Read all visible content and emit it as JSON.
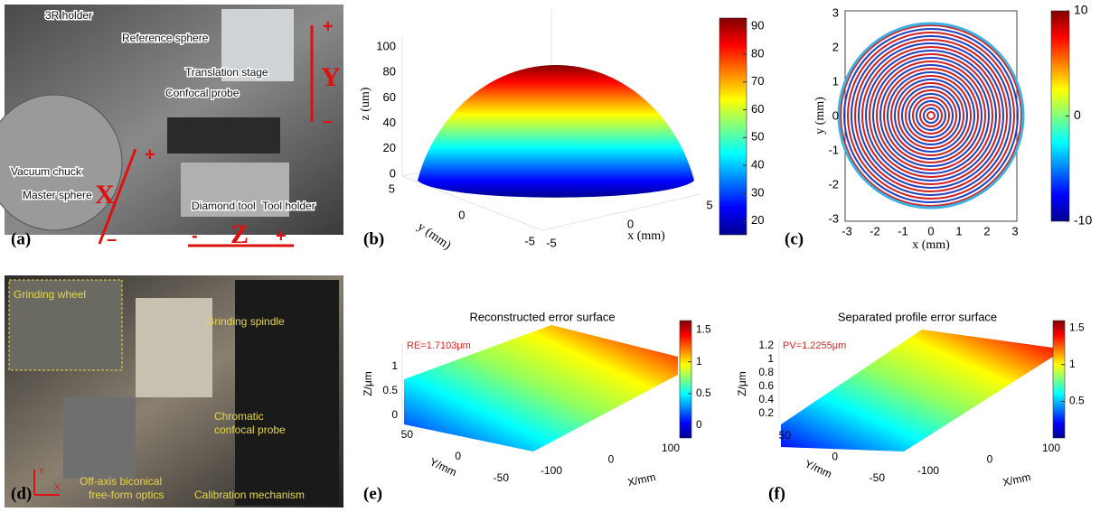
{
  "panel_a": {
    "tag": "(a)",
    "labels": [
      "3R holder",
      "Reference sphere",
      "Translation stage",
      "Confocal probe",
      "Vacuum chuck",
      "Master sphere",
      "Diamond tool",
      "Tool holder"
    ],
    "axes": [
      "Y",
      "X",
      "Z"
    ],
    "signs": [
      "+",
      "–",
      "+",
      "–",
      "-",
      "+"
    ]
  },
  "panel_b": {
    "tag": "(b)",
    "zlabel": "z (um)",
    "ylabel": "y (mm)",
    "xlabel": "x (mm)",
    "zticks": [
      0,
      20,
      40,
      60,
      80,
      100
    ],
    "yticks": [
      5,
      0,
      -5
    ],
    "xticks": [
      -5,
      0,
      5
    ],
    "colorbar": {
      "lim": [
        15,
        93
      ],
      "ticks": [
        20,
        30,
        40,
        50,
        60,
        70,
        80,
        90
      ]
    }
  },
  "panel_c": {
    "tag": "(c)",
    "xlabel": "x (mm)",
    "ylabel": "y (mm)",
    "xticks": [
      -3,
      -2,
      -1,
      0,
      1,
      2,
      3
    ],
    "yticks": [
      3,
      2,
      1,
      0,
      -1,
      -2,
      -3
    ],
    "colorbar": {
      "lim": [
        -10,
        10
      ],
      "ticks": [
        -10,
        0,
        10
      ]
    }
  },
  "panel_d": {
    "tag": "(d)",
    "labels": [
      "Grinding wheel",
      "Grinding spindle",
      "Chromatic",
      "confocal probe",
      "Off-axis biconical",
      "free-form optics",
      "Calibration mechanism"
    ],
    "axes": [
      "Y",
      "X"
    ]
  },
  "panel_e": {
    "tag": "(e)",
    "title": "Reconstructed error surface",
    "annotation": "RE=1.7103μm",
    "zlabel": "Z/μm",
    "ylabel": "Y/mm",
    "xlabel": "X/mm",
    "zticks": [
      0,
      0.5,
      1
    ],
    "yticks": [
      50,
      0,
      -50
    ],
    "xticks": [
      -100,
      0,
      100
    ],
    "colorbar": {
      "lim": [
        -0.2,
        1.65
      ],
      "ticks": [
        0,
        0.5,
        1,
        1.5
      ]
    }
  },
  "panel_f": {
    "tag": "(f)",
    "title": "Separated profile error surface",
    "annotation": "PV=1.2255μm",
    "zlabel": "Z/μm",
    "ylabel": "Y/mm",
    "xlabel": "X/mm",
    "zticks": [
      0.2,
      0.4,
      0.6,
      0.8,
      1,
      1.2
    ],
    "yticks": [
      50,
      0,
      -50
    ],
    "xticks": [
      -100,
      0,
      100
    ],
    "colorbar": {
      "lim": [
        0,
        1.6
      ],
      "ticks": [
        0.5,
        1,
        1.5
      ]
    }
  }
}
